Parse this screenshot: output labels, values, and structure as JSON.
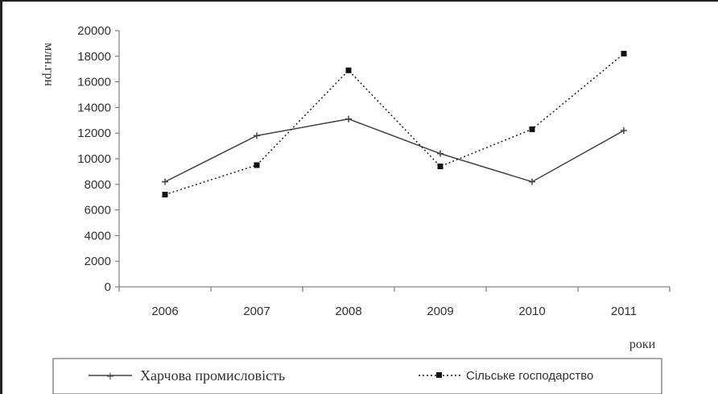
{
  "chart_data": {
    "type": "line",
    "title": "",
    "ylabel": "млн.грн",
    "xlabel": "роки",
    "categories": [
      "2006",
      "2007",
      "2008",
      "2009",
      "2010",
      "2011"
    ],
    "ylim": [
      0,
      20000
    ],
    "yticks": [
      "20000",
      "18000",
      "16000",
      "14000",
      "12000",
      "10000",
      "8000",
      "6000",
      "4000",
      "2000",
      "0"
    ],
    "series": [
      {
        "name": "Харчова промисловість",
        "values": [
          8200,
          11800,
          13100,
          10400,
          8200,
          12200
        ],
        "line": "solid",
        "marker": "plus",
        "color": "#444444"
      },
      {
        "name": "Сільське господарство",
        "values": [
          7200,
          9500,
          16900,
          9400,
          12300,
          18200
        ],
        "line": "dotted",
        "marker": "square",
        "color": "#222222"
      }
    ],
    "grid": false,
    "legend": "bottom"
  }
}
